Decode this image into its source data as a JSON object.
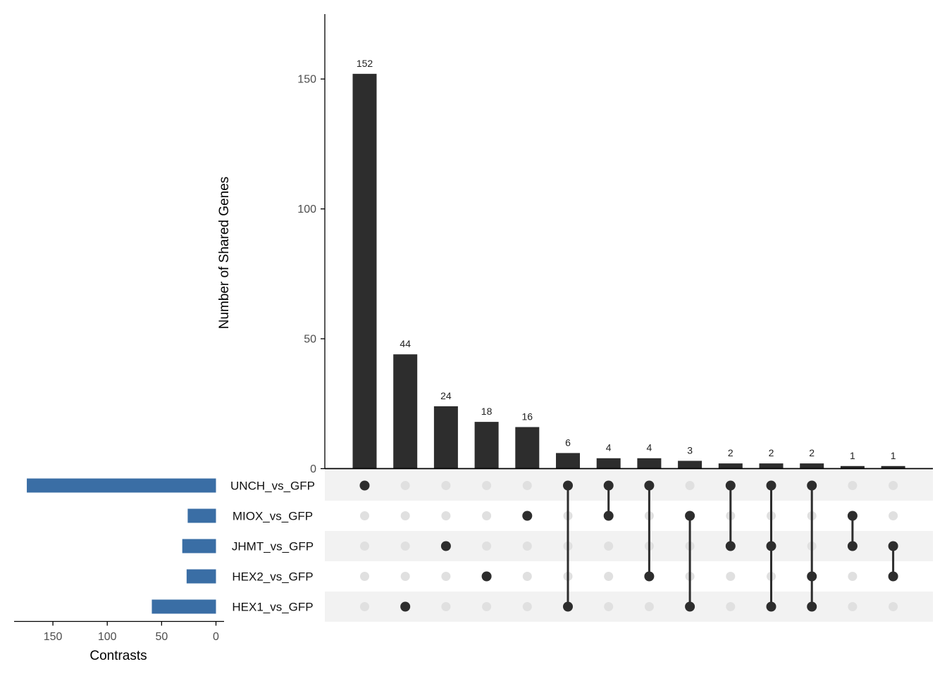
{
  "chart_data": {
    "type": "upset",
    "intersections": {
      "ylabel": "Number of Shared Genes",
      "ylim": [
        0,
        175
      ],
      "yticks": [
        0,
        50,
        100,
        150
      ],
      "values": [
        152,
        44,
        24,
        18,
        16,
        6,
        4,
        4,
        3,
        2,
        2,
        2,
        1,
        1
      ],
      "memberships": [
        [
          "UNCH_vs_GFP"
        ],
        [
          "HEX1_vs_GFP"
        ],
        [
          "JHMT_vs_GFP"
        ],
        [
          "HEX2_vs_GFP"
        ],
        [
          "MIOX_vs_GFP"
        ],
        [
          "UNCH_vs_GFP",
          "HEX1_vs_GFP"
        ],
        [
          "UNCH_vs_GFP",
          "MIOX_vs_GFP"
        ],
        [
          "UNCH_vs_GFP",
          "HEX2_vs_GFP"
        ],
        [
          "MIOX_vs_GFP",
          "HEX1_vs_GFP"
        ],
        [
          "UNCH_vs_GFP",
          "JHMT_vs_GFP"
        ],
        [
          "UNCH_vs_GFP",
          "JHMT_vs_GFP",
          "HEX1_vs_GFP"
        ],
        [
          "UNCH_vs_GFP",
          "HEX2_vs_GFP",
          "HEX1_vs_GFP"
        ],
        [
          "MIOX_vs_GFP",
          "JHMT_vs_GFP"
        ],
        [
          "JHMT_vs_GFP",
          "HEX2_vs_GFP"
        ]
      ]
    },
    "sets": {
      "names": [
        "UNCH_vs_GFP",
        "MIOX_vs_GFP",
        "JHMT_vs_GFP",
        "HEX2_vs_GFP",
        "HEX1_vs_GFP"
      ],
      "sizes": [
        174,
        26,
        31,
        27,
        59
      ],
      "xlabel": "Contrasts",
      "xlim": [
        0,
        187
      ],
      "xticks": [
        150,
        100,
        50,
        0
      ]
    },
    "colors": {
      "bar": "#2d2d2d",
      "set_bar": "#3a6ea5",
      "dot_active": "#2d2d2d",
      "dot_inactive": "#e0e0e0",
      "stripe": "#f2f2f2",
      "axis": "#000000"
    }
  }
}
